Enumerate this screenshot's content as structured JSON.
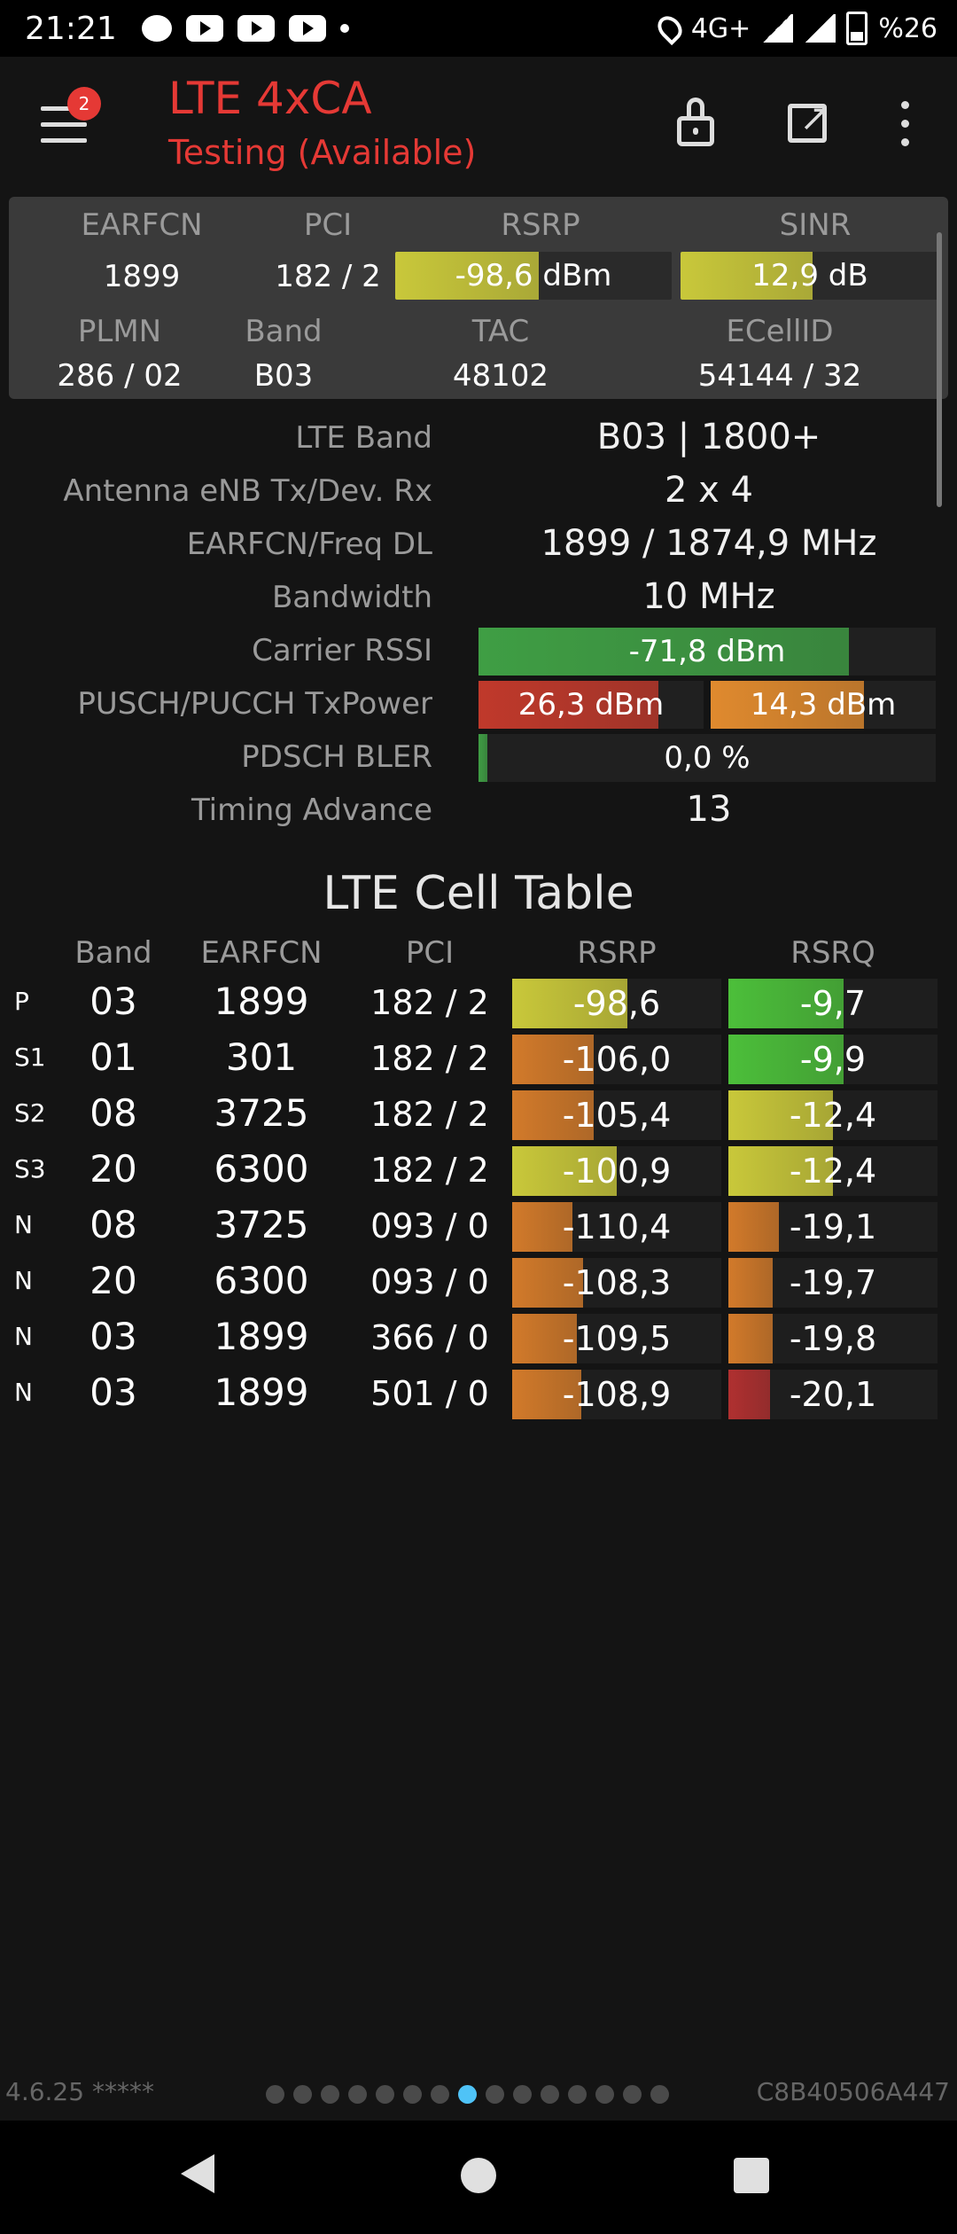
{
  "status_bar": {
    "time": "21:21",
    "network": "4G+",
    "battery": "%26",
    "icons": [
      "chat-icon",
      "youtube-icon",
      "youtube-icon",
      "youtube-icon",
      "dot-icon",
      "location-icon",
      "signal-icon",
      "signal-icon",
      "battery-icon"
    ]
  },
  "header": {
    "badge_count": "2",
    "title": "LTE 4xCA",
    "subtitle": "Testing (Available)",
    "icons": [
      "menu-icon",
      "lock-icon",
      "open-external-icon",
      "more-vert-icon"
    ]
  },
  "top_card": {
    "labels": {
      "earfcn": "EARFCN",
      "pci": "PCI",
      "rsrp": "RSRP",
      "sinr": "SINR",
      "plmn": "PLMN",
      "band": "Band",
      "tac": "TAC",
      "ecellid": "ECellID"
    },
    "earfcn": "1899",
    "pci": "182 / 2",
    "rsrp": {
      "text": "-98,6 dBm",
      "fill": 0.52,
      "color": "#c9c83a"
    },
    "sinr": {
      "text": "12,9 dB",
      "fill": 0.51,
      "color": "#c9c83a"
    },
    "plmn": "286 / 02",
    "band": "B03",
    "tac": "48102",
    "ecellid": "54144 / 32"
  },
  "details": {
    "lte_band": {
      "label": "LTE Band",
      "value": "B03 | 1800+"
    },
    "antenna": {
      "label": "Antenna eNB Tx/Dev. Rx",
      "value": "2 x 4"
    },
    "earfcn_freq": {
      "label": "EARFCN/Freq DL",
      "value": "1899 / 1874,9 MHz"
    },
    "bandwidth": {
      "label": "Bandwidth",
      "value": "10 MHz"
    },
    "carrier_rssi": {
      "label": "Carrier RSSI",
      "text": "-71,8 dBm",
      "fill": 0.81,
      "color": "#3f9e44"
    },
    "tx_power": {
      "label": "PUSCH/PUCCH TxPower",
      "pusch": {
        "text": "26,3 dBm",
        "fill": 0.8,
        "color": "#c0392b"
      },
      "pucch": {
        "text": "14,3 dBm",
        "fill": 0.68,
        "color": "#e08a2e"
      }
    },
    "bler": {
      "label": "PDSCH BLER",
      "text": "0,0 %",
      "fill": 0.02,
      "color": "#3f9e44"
    },
    "timing_advance": {
      "label": "Timing Advance",
      "value": "13"
    }
  },
  "cell_table": {
    "title": "LTE Cell Table",
    "headers": {
      "band": "Band",
      "earfcn": "EARFCN",
      "pci": "PCI",
      "rsrp": "RSRP",
      "rsrq": "RSRQ"
    },
    "rows": [
      {
        "id": "P",
        "band": "03",
        "earfcn": "1899",
        "pci": "182 / 2",
        "rsrp": "-98,6",
        "rsrp_fill": 0.55,
        "rsrp_color": "#c9c83a",
        "rsrq": "-9,7",
        "rsrq_fill": 0.55,
        "rsrq_color": "#4cbf3a"
      },
      {
        "id": "S1",
        "band": "01",
        "earfcn": "301",
        "pci": "182 / 2",
        "rsrp": "-106,0",
        "rsrp_fill": 0.39,
        "rsrp_color": "#d27a2a",
        "rsrq": "-9,9",
        "rsrq_fill": 0.55,
        "rsrq_color": "#4cbf3a"
      },
      {
        "id": "S2",
        "band": "08",
        "earfcn": "3725",
        "pci": "182 / 2",
        "rsrp": "-105,4",
        "rsrp_fill": 0.39,
        "rsrp_color": "#d27a2a",
        "rsrq": "-12,4",
        "rsrq_fill": 0.5,
        "rsrq_color": "#c9c83a"
      },
      {
        "id": "S3",
        "band": "20",
        "earfcn": "6300",
        "pci": "182 / 2",
        "rsrp": "-100,9",
        "rsrp_fill": 0.5,
        "rsrp_color": "#c9c83a",
        "rsrq": "-12,4",
        "rsrq_fill": 0.5,
        "rsrq_color": "#c9c83a"
      },
      {
        "id": "N",
        "band": "08",
        "earfcn": "3725",
        "pci": "093 / 0",
        "rsrp": "-110,4",
        "rsrp_fill": 0.29,
        "rsrp_color": "#d27a2a",
        "rsrq": "-19,1",
        "rsrq_fill": 0.24,
        "rsrq_color": "#d27a2a"
      },
      {
        "id": "N",
        "band": "20",
        "earfcn": "6300",
        "pci": "093 / 0",
        "rsrp": "-108,3",
        "rsrp_fill": 0.34,
        "rsrp_color": "#d27a2a",
        "rsrq": "-19,7",
        "rsrq_fill": 0.21,
        "rsrq_color": "#d27a2a"
      },
      {
        "id": "N",
        "band": "03",
        "earfcn": "1899",
        "pci": "366 / 0",
        "rsrp": "-109,5",
        "rsrp_fill": 0.31,
        "rsrp_color": "#d27a2a",
        "rsrq": "-19,8",
        "rsrq_fill": 0.21,
        "rsrq_color": "#d27a2a"
      },
      {
        "id": "N",
        "band": "03",
        "earfcn": "1899",
        "pci": "501 / 0",
        "rsrp": "-108,9",
        "rsrp_fill": 0.33,
        "rsrp_color": "#d27a2a",
        "rsrq": "-20,1",
        "rsrq_fill": 0.2,
        "rsrq_color": "#b03030"
      }
    ]
  },
  "footer": {
    "version": "4.6.25 *****",
    "device_id": "C8B40506A447",
    "page_count": 15,
    "active_page": 7
  },
  "navigation": {
    "icons": [
      "back-icon",
      "home-icon",
      "recents-icon"
    ]
  }
}
